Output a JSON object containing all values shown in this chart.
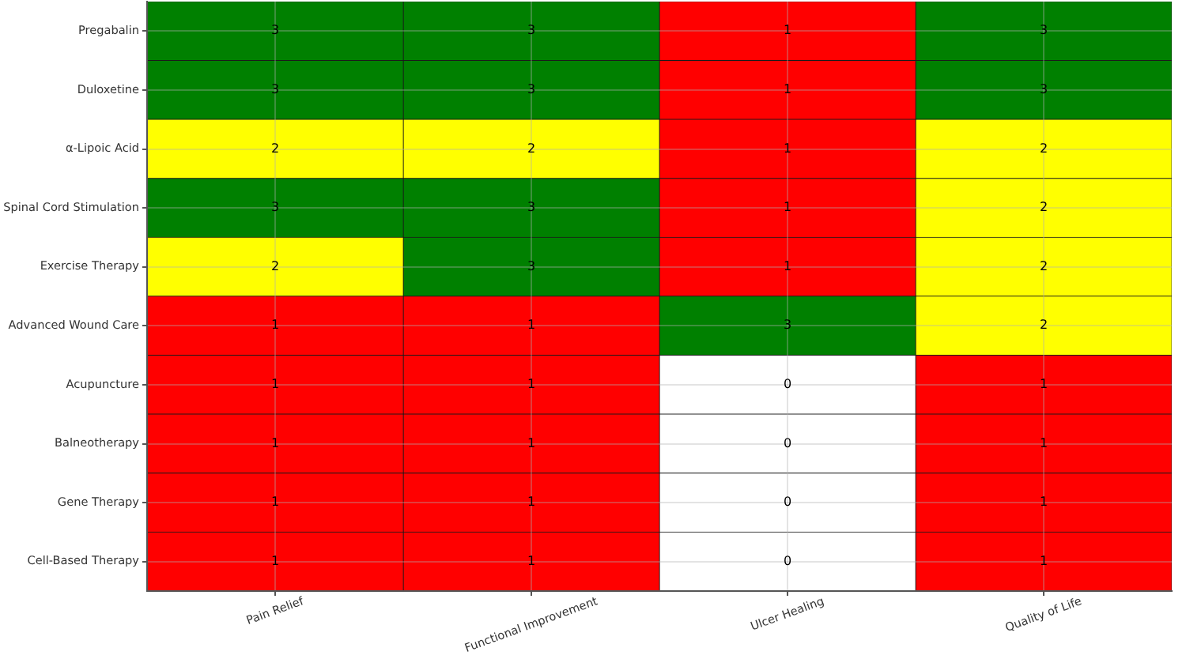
{
  "chart_data": {
    "type": "heatmap",
    "categories": [
      "Pain Relief",
      "Functional Improvement",
      "Ulcer Healing",
      "Quality of Life"
    ],
    "y_categories": [
      "Pregabalin",
      "Duloxetine",
      "α-Lipoic Acid",
      "Spinal Cord Stimulation",
      "Exercise Therapy",
      "Advanced Wound Care",
      "Acupuncture",
      "Balneotherapy",
      "Gene Therapy",
      "Cell-Based Therapy"
    ],
    "cells": [
      [
        3,
        3,
        1,
        3
      ],
      [
        3,
        3,
        1,
        3
      ],
      [
        2,
        2,
        1,
        2
      ],
      [
        3,
        3,
        1,
        2
      ],
      [
        2,
        3,
        1,
        2
      ],
      [
        1,
        1,
        3,
        2
      ],
      [
        1,
        1,
        0,
        1
      ],
      [
        1,
        1,
        0,
        1
      ],
      [
        1,
        1,
        0,
        1
      ],
      [
        1,
        1,
        0,
        1
      ]
    ],
    "colors": [
      [
        "#008000",
        "#008000",
        "#ff0000",
        "#008000"
      ],
      [
        "#008000",
        "#008000",
        "#ff0000",
        "#008000"
      ],
      [
        "#ffff00",
        "#ffff00",
        "#ff0000",
        "#ffff00"
      ],
      [
        "#008000",
        "#008000",
        "#ff0000",
        "#ffff00"
      ],
      [
        "#ffff00",
        "#008000",
        "#ff0000",
        "#ffff00"
      ],
      [
        "#ff0000",
        "#ff0000",
        "#008000",
        "#ffff00"
      ],
      [
        "#ff0000",
        "#ff0000",
        "#ffffff",
        "#ff0000"
      ],
      [
        "#ff0000",
        "#ff0000",
        "#ffffff",
        "#ff0000"
      ],
      [
        "#ff0000",
        "#ff0000",
        "#ffffff",
        "#ff0000"
      ],
      [
        "#ff0000",
        "#ff0000",
        "#ffffff",
        "#ff0000"
      ]
    ],
    "data_labels": true,
    "grid": true
  }
}
